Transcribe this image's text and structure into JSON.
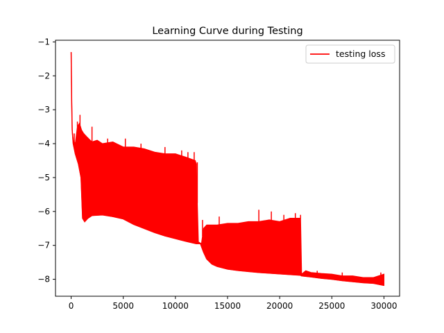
{
  "chart_data": {
    "type": "line",
    "title": "Learning Curve during Testing",
    "xlabel": "",
    "ylabel": "",
    "xlim": [
      -1500,
      31500
    ],
    "ylim": [
      -8.5,
      -0.95
    ],
    "x_ticks": [
      0,
      5000,
      10000,
      15000,
      20000,
      25000,
      30000
    ],
    "x_tick_labels": [
      "0",
      "5000",
      "10000",
      "15000",
      "20000",
      "25000",
      "30000"
    ],
    "y_ticks": [
      -1,
      -2,
      -3,
      -4,
      -5,
      -6,
      -7,
      -8
    ],
    "y_tick_labels": [
      "−1",
      "−2",
      "−3",
      "−4",
      "−5",
      "−6",
      "−7",
      "−8"
    ],
    "grid": false,
    "legend": {
      "position": "top-right"
    },
    "series": [
      {
        "name": "testing loss",
        "color": "#ff0000",
        "lower_envelope": [
          [
            0,
            -1.3
          ],
          [
            50,
            -2.7
          ],
          [
            100,
            -3.6
          ],
          [
            200,
            -4.0
          ],
          [
            400,
            -4.3
          ],
          [
            700,
            -4.6
          ],
          [
            950,
            -5.0
          ],
          [
            1100,
            -6.2
          ],
          [
            1300,
            -6.3
          ],
          [
            1600,
            -6.2
          ],
          [
            2000,
            -6.12
          ],
          [
            3000,
            -6.1
          ],
          [
            4000,
            -6.15
          ],
          [
            5000,
            -6.22
          ],
          [
            6000,
            -6.38
          ],
          [
            7000,
            -6.5
          ],
          [
            8000,
            -6.62
          ],
          [
            9000,
            -6.72
          ],
          [
            10000,
            -6.8
          ],
          [
            11000,
            -6.88
          ],
          [
            12000,
            -6.95
          ],
          [
            12400,
            -6.95
          ],
          [
            12700,
            -7.2
          ],
          [
            13000,
            -7.4
          ],
          [
            13500,
            -7.55
          ],
          [
            14000,
            -7.62
          ],
          [
            15000,
            -7.7
          ],
          [
            16000,
            -7.74
          ],
          [
            17000,
            -7.77
          ],
          [
            18000,
            -7.8
          ],
          [
            19000,
            -7.82
          ],
          [
            20000,
            -7.84
          ],
          [
            21000,
            -7.86
          ],
          [
            22000,
            -7.88
          ],
          [
            22100,
            -7.9
          ],
          [
            23000,
            -7.93
          ],
          [
            24000,
            -7.97
          ],
          [
            25000,
            -8.0
          ],
          [
            26000,
            -8.04
          ],
          [
            27000,
            -8.07
          ],
          [
            28000,
            -8.1
          ],
          [
            29000,
            -8.12
          ],
          [
            30000,
            -8.18
          ]
        ],
        "upper_envelope": [
          [
            0,
            -1.3
          ],
          [
            50,
            -2.7
          ],
          [
            100,
            -3.6
          ],
          [
            200,
            -3.9
          ],
          [
            400,
            -4.0
          ],
          [
            600,
            -3.5
          ],
          [
            800,
            -3.4
          ],
          [
            1000,
            -3.6
          ],
          [
            1200,
            -3.7
          ],
          [
            1500,
            -3.8
          ],
          [
            2000,
            -3.95
          ],
          [
            2500,
            -3.9
          ],
          [
            3000,
            -4.0
          ],
          [
            4000,
            -3.95
          ],
          [
            5000,
            -4.1
          ],
          [
            6000,
            -4.1
          ],
          [
            7000,
            -4.15
          ],
          [
            8000,
            -4.25
          ],
          [
            9000,
            -4.3
          ],
          [
            10000,
            -4.3
          ],
          [
            11000,
            -4.4
          ],
          [
            11900,
            -4.5
          ],
          [
            12000,
            -4.6
          ],
          [
            12200,
            -6.9
          ],
          [
            12500,
            -6.95
          ],
          [
            12700,
            -6.5
          ],
          [
            13000,
            -6.4
          ],
          [
            14000,
            -6.4
          ],
          [
            15000,
            -6.35
          ],
          [
            16000,
            -6.35
          ],
          [
            17000,
            -6.3
          ],
          [
            18000,
            -6.3
          ],
          [
            19000,
            -6.25
          ],
          [
            20000,
            -6.3
          ],
          [
            21000,
            -6.2
          ],
          [
            22000,
            -6.2
          ],
          [
            22100,
            -7.85
          ],
          [
            22500,
            -7.75
          ],
          [
            23000,
            -7.8
          ],
          [
            24000,
            -7.83
          ],
          [
            25000,
            -7.85
          ],
          [
            26000,
            -7.9
          ],
          [
            27000,
            -7.9
          ],
          [
            28000,
            -7.95
          ],
          [
            29000,
            -7.95
          ],
          [
            30000,
            -7.85
          ]
        ],
        "spikes": [
          [
            300,
            -3.7
          ],
          [
            600,
            -3.35
          ],
          [
            850,
            -3.15
          ],
          [
            2000,
            -3.5
          ],
          [
            3500,
            -3.85
          ],
          [
            5200,
            -3.85
          ],
          [
            6700,
            -4.0
          ],
          [
            9000,
            -4.1
          ],
          [
            10600,
            -4.2
          ],
          [
            11200,
            -4.25
          ],
          [
            11800,
            -4.25
          ],
          [
            12100,
            -4.55
          ],
          [
            12600,
            -6.25
          ],
          [
            14200,
            -6.15
          ],
          [
            18000,
            -5.95
          ],
          [
            19200,
            -6.0
          ],
          [
            20400,
            -6.1
          ],
          [
            21500,
            -6.05
          ],
          [
            22000,
            -6.1
          ],
          [
            23600,
            -7.75
          ],
          [
            26000,
            -7.8
          ],
          [
            29700,
            -7.8
          ]
        ]
      }
    ]
  }
}
